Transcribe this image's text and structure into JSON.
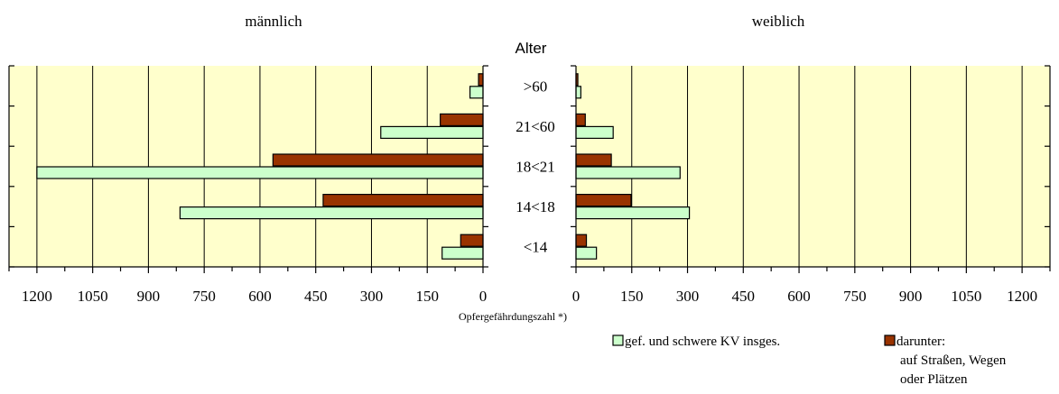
{
  "chart_data": {
    "type": "bar",
    "orientation": "horizontal",
    "layout": "population-pyramid",
    "title_left": "männlich",
    "title_right": "weiblich",
    "category_axis_title": "Alter",
    "xlabel": "Opfergefährdungszahl *)",
    "categories": [
      ">60",
      "21<60",
      "18<21",
      "14<18",
      "<14"
    ],
    "xlim": [
      0,
      1275
    ],
    "xticks": [
      0,
      150,
      300,
      450,
      600,
      750,
      900,
      1050,
      1200
    ],
    "grid": true,
    "legend_position": "bottom-right",
    "background_color": "#ffffcc",
    "series": [
      {
        "name": "gef. und schwere KV insges.",
        "color": "#ccffcc",
        "male": [
          35,
          275,
          1200,
          815,
          110
        ],
        "female": [
          13,
          100,
          280,
          305,
          55
        ]
      },
      {
        "name": "darunter:\nauf Straßen, Wegen\noder Plätzen",
        "name_lines": [
          "darunter:",
          "auf Straßen, Wegen",
          "oder Plätzen"
        ],
        "color": "#993300",
        "male": [
          12,
          115,
          565,
          430,
          60
        ],
        "female": [
          5,
          25,
          95,
          148,
          28
        ]
      }
    ]
  }
}
